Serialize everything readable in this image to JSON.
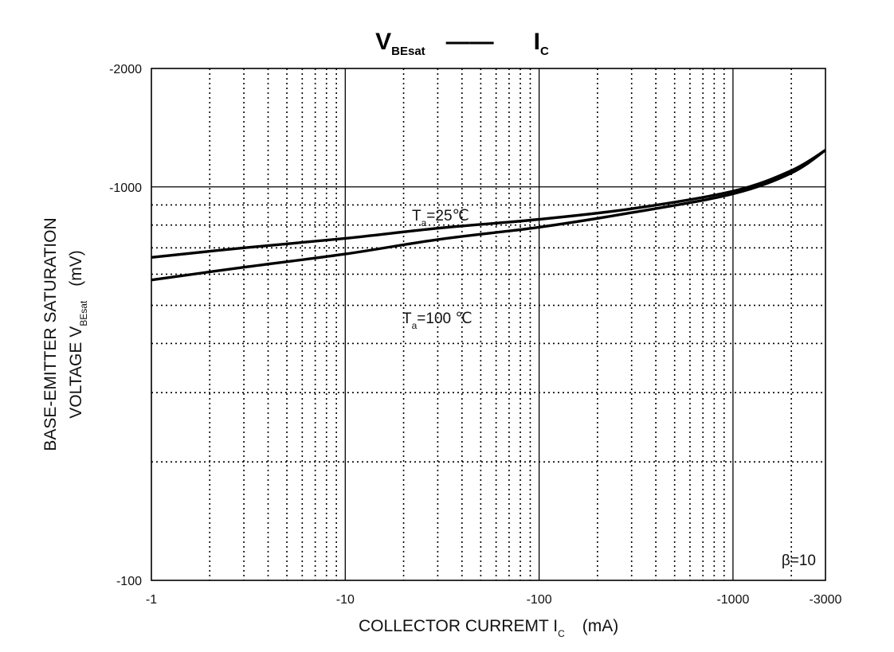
{
  "chart_data": {
    "type": "line",
    "title": {
      "left_main": "V",
      "left_sub": "BEsat",
      "separator": "——",
      "right_main": "I",
      "right_sub": "C"
    },
    "xlabel": {
      "main": "COLLECTOR CURREMT   I",
      "sub": "C",
      "unit": "(mA)"
    },
    "ylabel": {
      "line1": "BASE-EMITTER SATURATION",
      "line2_main": "VOLTAGE   V",
      "line2_sub": "BEsat",
      "unit": "(mV)"
    },
    "x_scale": "log",
    "y_scale": "log",
    "xlim": [
      -1,
      -3000
    ],
    "ylim": [
      -100,
      -2000
    ],
    "x_ticks": [
      {
        "value": -1,
        "label": "-1"
      },
      {
        "value": -10,
        "label": "-10"
      },
      {
        "value": -100,
        "label": "-100"
      },
      {
        "value": -1000,
        "label": "-1000"
      },
      {
        "value": -3000,
        "label": "-3000"
      }
    ],
    "y_ticks": [
      {
        "value": -100,
        "label": "-100"
      },
      {
        "value": -1000,
        "label": "-1000"
      },
      {
        "value": -2000,
        "label": "-2000"
      }
    ],
    "grid": true,
    "condition": "β=10",
    "series": [
      {
        "label_main": "T",
        "label_sub": "a",
        "label_rest": "=25℃",
        "x": [
          -1,
          -3,
          -10,
          -30,
          -100,
          -300,
          -1000,
          -2000,
          -3000
        ],
        "y": [
          -662,
          -700,
          -740,
          -785,
          -827,
          -880,
          -975,
          -1100,
          -1240
        ]
      },
      {
        "label_main": "T",
        "label_sub": "a",
        "label_rest": "=100 ℃",
        "x": [
          -1,
          -3,
          -10,
          -30,
          -100,
          -300,
          -1000,
          -2000,
          -3000
        ],
        "y": [
          -580,
          -625,
          -675,
          -735,
          -790,
          -860,
          -960,
          -1085,
          -1240
        ]
      }
    ]
  }
}
